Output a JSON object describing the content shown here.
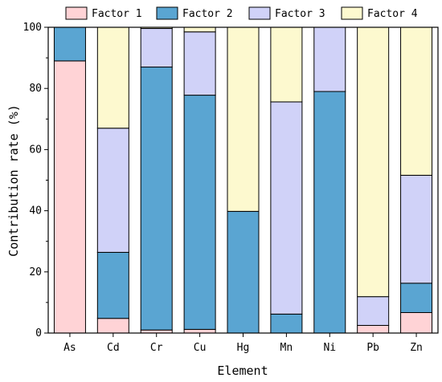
{
  "chart_data": {
    "type": "bar",
    "stacked": true,
    "xlabel": "Element",
    "ylabel": "Contribution rate (%)",
    "ylim": [
      0,
      100
    ],
    "yticks": [
      0,
      20,
      40,
      60,
      80,
      100
    ],
    "grid": false,
    "legend_position": "top",
    "categories": [
      "As",
      "Cd",
      "Cr",
      "Cu",
      "Hg",
      "Mn",
      "Ni",
      "Pb",
      "Zn"
    ],
    "series": [
      {
        "name": "Factor 1",
        "color": "#ffd3d6",
        "values": [
          89,
          4.8,
          1.0,
          1.2,
          0,
          0,
          0,
          2.5,
          6.7
        ]
      },
      {
        "name": "Factor 2",
        "color": "#5aa5d2",
        "values": [
          11,
          21.6,
          86.0,
          76.6,
          39.8,
          6.2,
          79,
          0,
          9.6
        ]
      },
      {
        "name": "Factor 3",
        "color": "#d0d2f8",
        "values": [
          0,
          40.6,
          12.6,
          20.7,
          0,
          69.4,
          21,
          9.4,
          35.3
        ]
      },
      {
        "name": "Factor 4",
        "color": "#fdf9cf",
        "values": [
          0,
          33,
          0.4,
          1.5,
          60.2,
          24.4,
          0,
          88.1,
          48.4
        ]
      }
    ]
  }
}
